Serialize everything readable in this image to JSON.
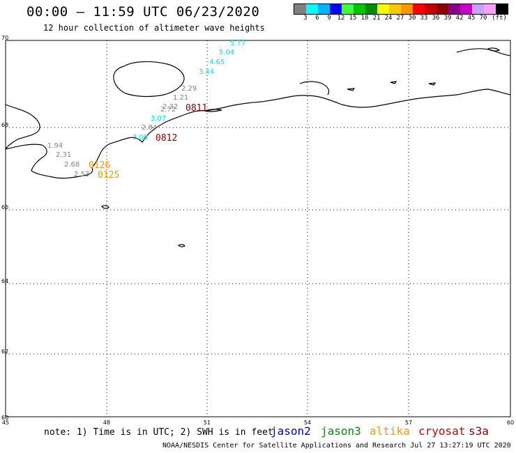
{
  "header": {
    "title": "00:00 – 11:59 UTC 06/23/2020",
    "subtitle": "12 hour collection of altimeter wave heights"
  },
  "legend": {
    "colors": [
      "#7f7f7f",
      "#00ffff",
      "#00b4ff",
      "#0000ff",
      "#40ff40",
      "#00c800",
      "#008c00",
      "#ffff00",
      "#ffc800",
      "#ff9600",
      "#ff0000",
      "#c80000",
      "#8c0000",
      "#8c008c",
      "#c800c8",
      "#c8a0ff",
      "#ffa0ff",
      "#000000"
    ],
    "ticks": [
      "3",
      "6",
      "9",
      "12",
      "15",
      "18",
      "21",
      "24",
      "27",
      "30",
      "33",
      "36",
      "39",
      "42",
      "45",
      "70",
      "(ft)"
    ]
  },
  "map": {
    "lat_labels": [
      "70",
      "68",
      "66",
      "64",
      "62",
      "60"
    ],
    "lon_labels": [
      "45",
      "48",
      "51",
      "54",
      "57",
      "60"
    ],
    "extent": {
      "lon": [
        45,
        60
      ],
      "lat": [
        60,
        70
      ]
    }
  },
  "observations": [
    {
      "text": "5.77",
      "color": "#00e0e0"
    },
    {
      "text": "5.04",
      "color": "#00e0e0"
    },
    {
      "text": "4.65",
      "color": "#00e0e0"
    },
    {
      "text": "3.44",
      "color": "#00e0e0"
    },
    {
      "text": "2.29",
      "color": "#808080"
    },
    {
      "text": "1.21",
      "color": "#808080"
    },
    {
      "text": "2.32",
      "color": "#808080"
    },
    {
      "text": "2.72",
      "color": "#808080"
    },
    {
      "text": "3.07",
      "color": "#00e0e0"
    },
    {
      "text": "2.84",
      "color": "#808080"
    },
    {
      "text": "3.08",
      "color": "#00e0e0"
    },
    {
      "text": "1.94",
      "color": "#808080"
    },
    {
      "text": "2.31",
      "color": "#808080"
    },
    {
      "text": "2.68",
      "color": "#808080"
    },
    {
      "text": "2.53",
      "color": "#808080"
    }
  ],
  "passes": [
    {
      "text": "0811",
      "color": "#800000"
    },
    {
      "text": "0812",
      "color": "#800000"
    },
    {
      "text": "0126",
      "color": "#ff9600"
    },
    {
      "text": "0125",
      "color": "#ff9600"
    }
  ],
  "footer": {
    "note": "note:  1)  Time is in UTC;  2)  SWH is in feet",
    "satellites": [
      {
        "name": "jason2",
        "color": "#0000c8"
      },
      {
        "name": "jason3",
        "color": "#008c00"
      },
      {
        "name": "altika",
        "color": "#ff9600"
      },
      {
        "name": "cryosat",
        "color": "#c80000"
      },
      {
        "name": "s3a",
        "color": "#800000"
      }
    ],
    "credit": "NOAA/NESDIS Center for Satellite Applications and Research    Jul 27 13:27:19 UTC 2020"
  }
}
